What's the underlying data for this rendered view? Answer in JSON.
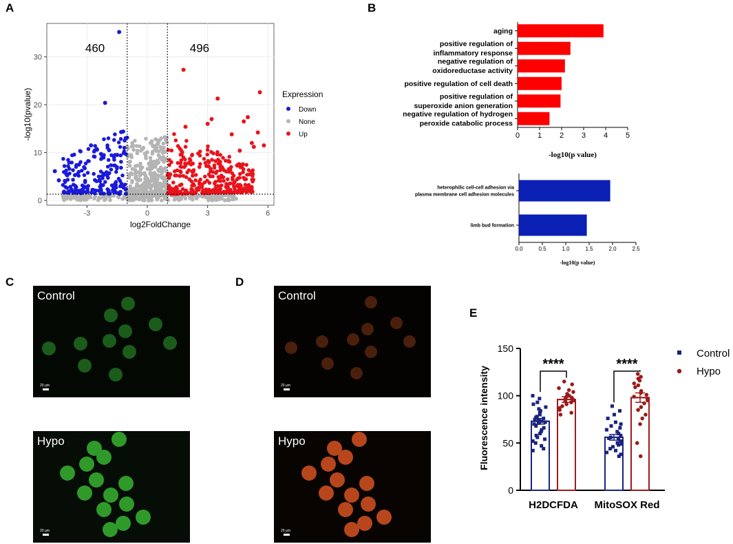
{
  "panels": {
    "A": "A",
    "B": "B",
    "C": "C",
    "D": "D",
    "E": "E"
  },
  "chart_data": [
    {
      "id": "A",
      "type": "scatter",
      "title": "",
      "xlabel": "log2FoldChange",
      "ylabel": "-log10(pvalue)",
      "xlim": [
        -5,
        6.3
      ],
      "ylim": [
        -1,
        37
      ],
      "xticks": [
        -3,
        0,
        3,
        6
      ],
      "yticks": [
        0,
        10,
        20,
        30
      ],
      "thresholds": {
        "fold_change": [
          -1,
          1
        ],
        "pvalue": 1.3
      },
      "annotations": [
        {
          "text": "460",
          "x": -2.6,
          "y": 31
        },
        {
          "text": "496",
          "x": 2.6,
          "y": 31
        }
      ],
      "legend": {
        "title": "Expression",
        "position": "right",
        "entries": [
          {
            "name": "Down",
            "color": "#1a1adb"
          },
          {
            "name": "None",
            "color": "#b4b4b4"
          },
          {
            "name": "Up",
            "color": "#e8141c"
          }
        ]
      },
      "counts": {
        "Down": 460,
        "Up": 496
      },
      "series": [
        {
          "name": "Down",
          "color": "#1a1adb",
          "points": [
            [
              -1.4,
              35.2
            ],
            [
              -2.1,
              20.4
            ],
            [
              -1.2,
              14.4
            ],
            [
              -1.3,
              14.3
            ],
            [
              -4.6,
              6.1
            ],
            [
              -4.4,
              4.2
            ],
            [
              -3.4,
              7.5
            ],
            [
              -3.6,
              5.3
            ],
            [
              -2.8,
              11.5
            ],
            [
              -2.5,
              10.6
            ],
            [
              -2.3,
              9.7
            ],
            [
              -1.9,
              10.5
            ],
            [
              -1.5,
              9.5
            ]
          ]
        },
        {
          "name": "Up",
          "color": "#e8141c",
          "points": [
            [
              1.8,
              27.3
            ],
            [
              5.6,
              22.6
            ],
            [
              3.5,
              21.3
            ],
            [
              5.0,
              17.4
            ],
            [
              3.2,
              17.0
            ],
            [
              3.0,
              16.0
            ],
            [
              4.8,
              16.5
            ],
            [
              5.5,
              14.2
            ],
            [
              4.2,
              13.8
            ],
            [
              5.2,
              12.0
            ],
            [
              5.8,
              11.5
            ],
            [
              5.3,
              11.2
            ],
            [
              4.6,
              10.4
            ],
            [
              1.9,
              15.4
            ]
          ]
        }
      ],
      "clouds": [
        {
          "series": "None",
          "x_range": [
            -1,
            1
          ],
          "count": 340
        },
        {
          "series": "None",
          "x_range": [
            -4.2,
            4.5
          ],
          "count": 260,
          "below_threshold": true
        },
        {
          "series": "Down",
          "x_range": [
            -4.2,
            -1
          ],
          "count": 200
        },
        {
          "series": "Up",
          "x_range": [
            1,
            5.3
          ],
          "count": 330
        }
      ]
    },
    {
      "id": "B-top",
      "type": "bar",
      "orientation": "horizontal",
      "categories": [
        "aging",
        "positive regulation of inflammatory response",
        "negative regulation of oxidoreductase activity",
        "positive regulation of cell death",
        "positive regulation of superoxide anion generation",
        "negative regulation of hydrogen peroxide catabolic process"
      ],
      "label_lines": [
        [
          "aging"
        ],
        [
          "positive regulation of",
          "inflammatory response"
        ],
        [
          "negative regulation of",
          "oxidoreductase activity"
        ],
        [
          "positive regulation of cell death"
        ],
        [
          "positive regulation of",
          "superoxide anion generation"
        ],
        [
          "negative regulation of hydrogen",
          "peroxide catabolic process"
        ]
      ],
      "values": [
        3.9,
        2.4,
        2.15,
        2.0,
        1.95,
        1.45
      ],
      "color": "#ff0000",
      "xlabel": "-log10(p value)",
      "xticks": [
        "0",
        "1",
        "2",
        "3",
        "4",
        "5"
      ],
      "xlim": [
        0,
        5
      ]
    },
    {
      "id": "B-bottom",
      "type": "bar",
      "orientation": "horizontal",
      "categories": [
        "heterophilic cell-cell adhesion via plasma membrane cell adhesion molecules",
        "limb bud formation"
      ],
      "label_lines": [
        [
          "heterophilic cell-cell adhesion via",
          "plasma membrane cell adhesion molecules"
        ],
        [
          "limb bud formation"
        ]
      ],
      "values": [
        1.95,
        1.45
      ],
      "color": "#0a1fb4",
      "xlabel": "-log10(p value)",
      "xticks": [
        "0.0",
        "0.5",
        "1.0",
        "1.5",
        "2.0",
        "2.5"
      ],
      "xlim": [
        0,
        2.5
      ]
    },
    {
      "id": "E",
      "type": "bar",
      "categories": [
        "H2DCFDA",
        "MitoSOX Red"
      ],
      "ylabel": "Fluorescence intensity",
      "ylim": [
        0,
        150
      ],
      "yticks": [
        0,
        50,
        100,
        150
      ],
      "significance": [
        "****",
        "****"
      ],
      "legend": {
        "position": "right",
        "entries": [
          {
            "name": "Control",
            "color": "#1a237e",
            "marker": "square"
          },
          {
            "name": "Hypo",
            "color": "#9b1b1b",
            "marker": "circle"
          }
        ]
      },
      "series": [
        {
          "name": "Control",
          "values": [
            73,
            56
          ],
          "sem": [
            3,
            3
          ],
          "color": "#1a237e",
          "points": [
            [
              100,
              97,
              93,
              91,
              88,
              86,
              84,
              82,
              80,
              78,
              77,
              76,
              75,
              74,
              73,
              72,
              71,
              70,
              68,
              66,
              64,
              62,
              60,
              58,
              56,
              54,
              52,
              50,
              47,
              44,
              42
            ],
            [
              89,
              84,
              80,
              76,
              72,
              70,
              68,
              66,
              64,
              62,
              60,
              58,
              56,
              55,
              54,
              52,
              50,
              49,
              48,
              46,
              44,
              42,
              40,
              38,
              36
            ]
          ]
        },
        {
          "name": "Hypo",
          "values": [
            96,
            98
          ],
          "sem": [
            3,
            5
          ],
          "color": "#9b1b1b",
          "points": [
            [
              115,
              112,
              108,
              106,
              104,
              102,
              100,
              99,
              98,
              97,
              96,
              95,
              94,
              93,
              91,
              89,
              87,
              85,
              82,
              80
            ],
            [
              123,
              120,
              118,
              116,
              113,
              111,
              109,
              105,
              103,
              101,
              99,
              97,
              95,
              92,
              88,
              85,
              80,
              76,
              70,
              50,
              36
            ]
          ]
        }
      ]
    }
  ],
  "micrographs": {
    "C": {
      "top_label": "Control",
      "bottom_label": "Hypo",
      "scale_bar": "20 μm"
    },
    "D": {
      "top_label": "Control",
      "bottom_label": "Hypo",
      "scale_bar": "20 μm"
    }
  }
}
